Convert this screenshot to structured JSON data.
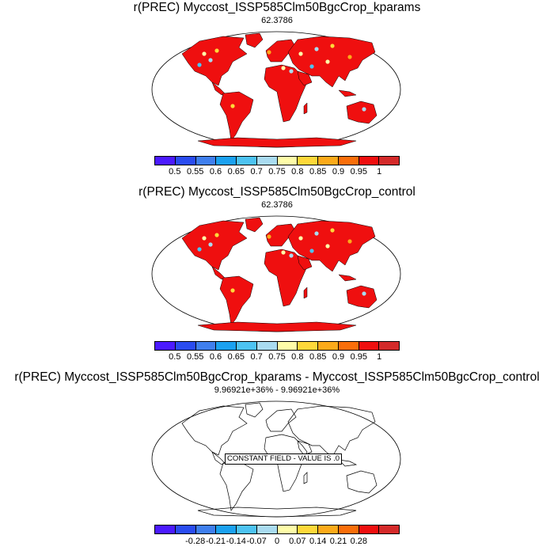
{
  "colors": {
    "levels_panels_1_2": [
      "#4b1aff",
      "#2a4cf0",
      "#3f7fee",
      "#1ba1f0",
      "#4dc3f2",
      "#a9dbf0",
      "#fefca8",
      "#fed83a",
      "#fcaa1a",
      "#fa6e0a",
      "#ef0f0f",
      "#d42a2a"
    ],
    "levels_panel_3": [
      "#4b1aff",
      "#2a4cf0",
      "#3f7fee",
      "#1ba1f0",
      "#4dc3f2",
      "#a9dbf0",
      "#fefca8",
      "#fed83a",
      "#fcaa1a",
      "#fa6e0a",
      "#ef0f0f",
      "#d42a2a"
    ],
    "land_fill": "#ef0f0f",
    "outline": "#000000"
  },
  "panels": [
    {
      "title": "r(PREC) Myccost_ISSP585Clm50BgcCrop_kparams",
      "subtitle": "62.3786",
      "colorbar_ticks": [
        "0.5",
        "0.55",
        "0.6",
        "0.65",
        "0.7",
        "0.75",
        "0.8",
        "0.85",
        "0.9",
        "0.95",
        "1"
      ]
    },
    {
      "title": "r(PREC) Myccost_ISSP585Clm50BgcCrop_control",
      "subtitle": "62.3786",
      "colorbar_ticks": [
        "0.5",
        "0.55",
        "0.6",
        "0.65",
        "0.7",
        "0.75",
        "0.8",
        "0.85",
        "0.9",
        "0.95",
        "1"
      ]
    },
    {
      "title": "r(PREC) Myccost_ISSP585Clm50BgcCrop_kparams - Myccost_ISSP585Clm50BgcCrop_control",
      "subtitle": "9.96921e+36% - 9.96921e+36%",
      "constant_field_label": "CONSTANT FIELD - VALUE IS .0",
      "colorbar_ticks": [
        "-0.28",
        "-0.21",
        "-0.14",
        "-0.07",
        "0",
        "0.07",
        "0.14",
        "0.21",
        "0.28"
      ]
    }
  ]
}
